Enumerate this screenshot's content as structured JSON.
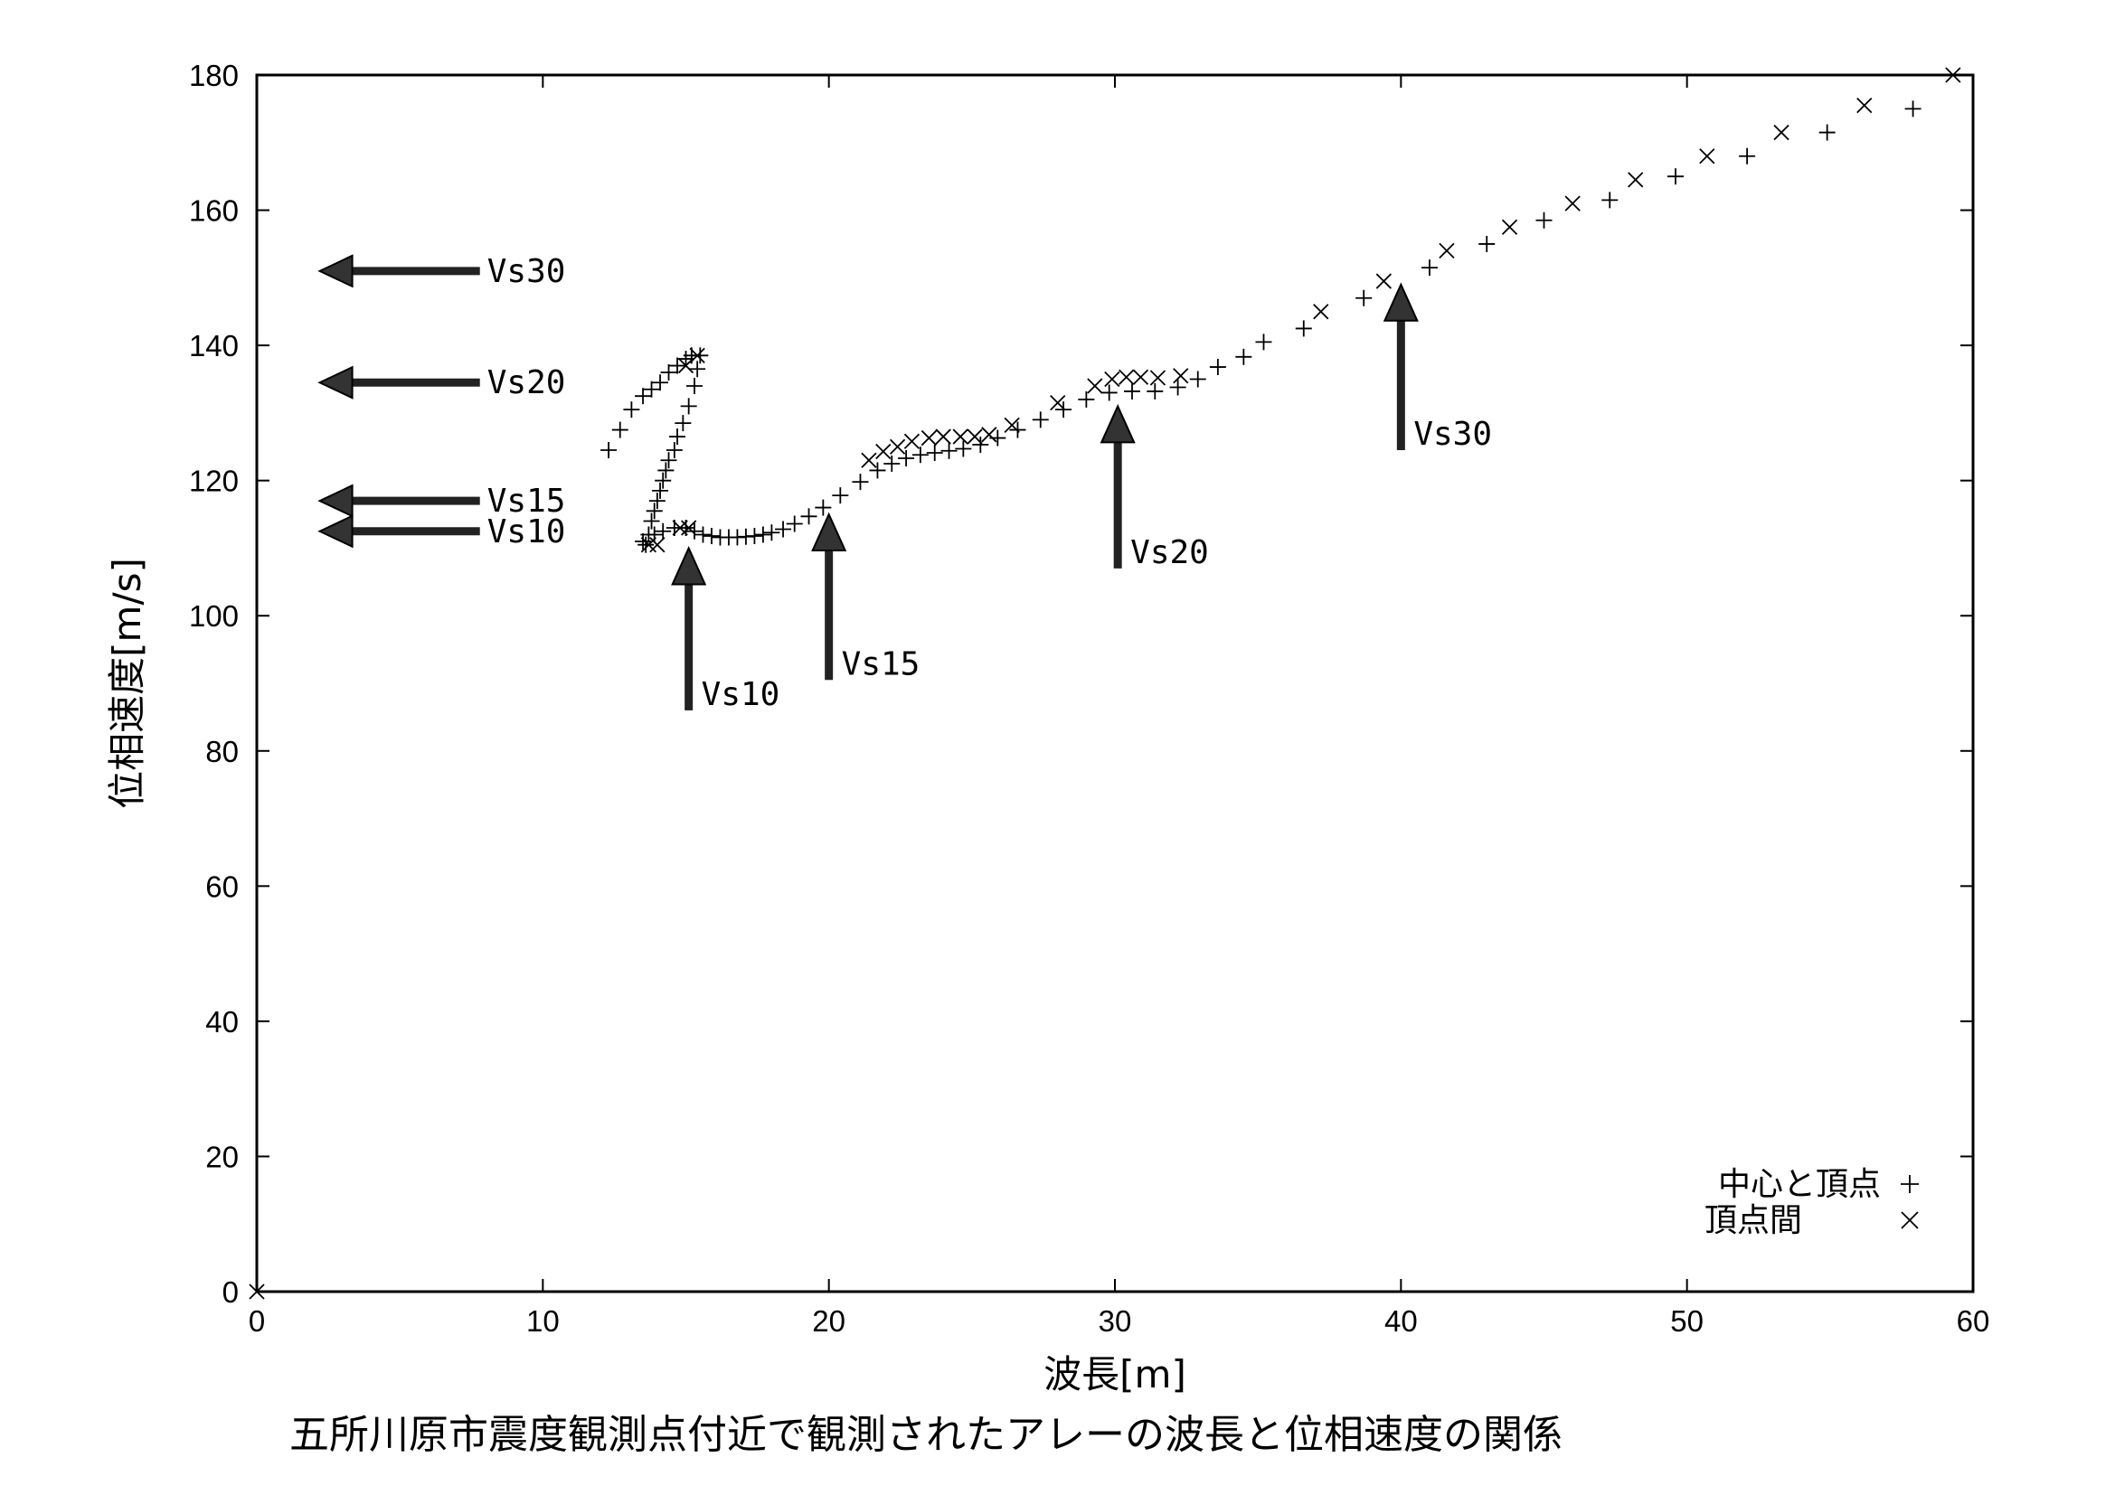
{
  "caption": "五所川原市震度観測点付近で観測されたアレーの波長と位相速度の関係",
  "chart_data": {
    "type": "scatter",
    "title": "",
    "xlabel": "波長[m]",
    "ylabel": "位相速度[m/s]",
    "xlim": [
      0,
      60
    ],
    "ylim": [
      0,
      180
    ],
    "xticks": [
      0,
      10,
      20,
      30,
      40,
      50,
      60
    ],
    "yticks": [
      0,
      20,
      40,
      60,
      80,
      100,
      120,
      140,
      160,
      180
    ],
    "grid": false,
    "legend_position": "bottom-right",
    "series": [
      {
        "name": "中心と頂点",
        "marker": "plus",
        "points": [
          [
            12.3,
            124.5
          ],
          [
            12.7,
            127.5
          ],
          [
            13.1,
            130.5
          ],
          [
            13.5,
            132.5
          ],
          [
            13.8,
            133.5
          ],
          [
            14.1,
            134.5
          ],
          [
            14.4,
            136
          ],
          [
            14.7,
            137
          ],
          [
            15.0,
            138
          ],
          [
            15.2,
            138.5
          ],
          [
            13.6,
            110.5
          ],
          [
            13.7,
            112
          ],
          [
            13.8,
            114
          ],
          [
            13.9,
            115.5
          ],
          [
            14.0,
            117
          ],
          [
            14.1,
            118.5
          ],
          [
            14.2,
            120
          ],
          [
            14.3,
            121.5
          ],
          [
            14.4,
            123
          ],
          [
            14.6,
            124.5
          ],
          [
            14.7,
            126.5
          ],
          [
            14.9,
            128.5
          ],
          [
            15.1,
            131
          ],
          [
            15.3,
            134
          ],
          [
            15.4,
            136.5
          ],
          [
            15.5,
            138.5
          ],
          [
            13.5,
            111
          ],
          [
            13.9,
            112
          ],
          [
            14.2,
            112.5
          ],
          [
            14.6,
            113
          ],
          [
            15.0,
            113
          ],
          [
            15.3,
            112.5
          ],
          [
            15.6,
            112
          ],
          [
            15.9,
            111.8
          ],
          [
            16.2,
            111.6
          ],
          [
            16.5,
            111.6
          ],
          [
            16.8,
            111.6
          ],
          [
            17.1,
            111.7
          ],
          [
            17.4,
            111.8
          ],
          [
            17.7,
            112
          ],
          [
            18.0,
            112.3
          ],
          [
            18.4,
            112.8
          ],
          [
            18.8,
            113.6
          ],
          [
            19.3,
            114.7
          ],
          [
            19.8,
            116
          ],
          [
            20.4,
            117.8
          ],
          [
            21.1,
            119.8
          ],
          [
            21.7,
            121.5
          ],
          [
            22.2,
            122.5
          ],
          [
            22.7,
            123.3
          ],
          [
            23.2,
            123.8
          ],
          [
            23.7,
            124.1
          ],
          [
            24.2,
            124.4
          ],
          [
            24.7,
            124.7
          ],
          [
            25.3,
            125.3
          ],
          [
            25.9,
            126.3
          ],
          [
            26.6,
            127.5
          ],
          [
            27.4,
            129
          ],
          [
            28.2,
            130.5
          ],
          [
            29.0,
            132
          ],
          [
            29.8,
            133
          ],
          [
            30.6,
            133.2
          ],
          [
            31.4,
            133.2
          ],
          [
            32.2,
            133.8
          ],
          [
            32.9,
            135
          ],
          [
            33.6,
            136.8
          ],
          [
            34.5,
            138.3
          ],
          [
            35.2,
            140.5
          ],
          [
            36.6,
            142.5
          ],
          [
            38.7,
            147
          ],
          [
            41.0,
            151.5
          ],
          [
            43.0,
            155
          ],
          [
            45.0,
            158.5
          ],
          [
            47.3,
            161.5
          ],
          [
            49.6,
            165
          ],
          [
            52.1,
            168
          ],
          [
            54.9,
            171.5
          ],
          [
            57.9,
            175
          ]
        ]
      },
      {
        "name": "頂点間",
        "marker": "cross",
        "points": [
          [
            0,
            0
          ],
          [
            15.0,
            137
          ],
          [
            15.4,
            138.5
          ],
          [
            13.7,
            110.5
          ],
          [
            14.0,
            110.5
          ],
          [
            14.8,
            113
          ],
          [
            15.1,
            113
          ],
          [
            21.4,
            123
          ],
          [
            21.9,
            124.3
          ],
          [
            22.4,
            125
          ],
          [
            22.9,
            125.8
          ],
          [
            23.5,
            126.3
          ],
          [
            24.0,
            126.5
          ],
          [
            24.6,
            126.5
          ],
          [
            25.1,
            126.5
          ],
          [
            25.6,
            126.8
          ],
          [
            26.4,
            128.2
          ],
          [
            28.0,
            131.5
          ],
          [
            29.3,
            134
          ],
          [
            29.9,
            135
          ],
          [
            30.4,
            135.3
          ],
          [
            30.9,
            135.3
          ],
          [
            31.5,
            135.2
          ],
          [
            32.3,
            135.5
          ],
          [
            37.2,
            145
          ],
          [
            39.4,
            149.5
          ],
          [
            41.6,
            154
          ],
          [
            43.8,
            157.5
          ],
          [
            46.0,
            161
          ],
          [
            48.2,
            164.5
          ],
          [
            50.7,
            168
          ],
          [
            53.3,
            171.5
          ],
          [
            56.2,
            175.5
          ],
          [
            59.3,
            180
          ]
        ]
      }
    ],
    "annotations": [
      {
        "text": "Vs30",
        "direction": "left",
        "tip": [
          2.2,
          151
        ],
        "tail": [
          7.8,
          151
        ]
      },
      {
        "text": "Vs20",
        "direction": "left",
        "tip": [
          2.2,
          134.5
        ],
        "tail": [
          7.8,
          134.5
        ]
      },
      {
        "text": "Vs15",
        "direction": "left",
        "tip": [
          2.2,
          117
        ],
        "tail": [
          7.8,
          117
        ]
      },
      {
        "text": "Vs10",
        "direction": "left",
        "tip": [
          2.2,
          112.5
        ],
        "tail": [
          7.8,
          112.5
        ]
      },
      {
        "text": "Vs10",
        "direction": "up",
        "tip": [
          15.1,
          110
        ],
        "tail": [
          15.1,
          86
        ]
      },
      {
        "text": "Vs15",
        "direction": "up",
        "tip": [
          20.0,
          115
        ],
        "tail": [
          20.0,
          90.5
        ]
      },
      {
        "text": "Vs20",
        "direction": "up",
        "tip": [
          30.1,
          131
        ],
        "tail": [
          30.1,
          107
        ]
      },
      {
        "text": "Vs30",
        "direction": "up",
        "tip": [
          40.0,
          149
        ],
        "tail": [
          40.0,
          124.5
        ]
      }
    ]
  }
}
